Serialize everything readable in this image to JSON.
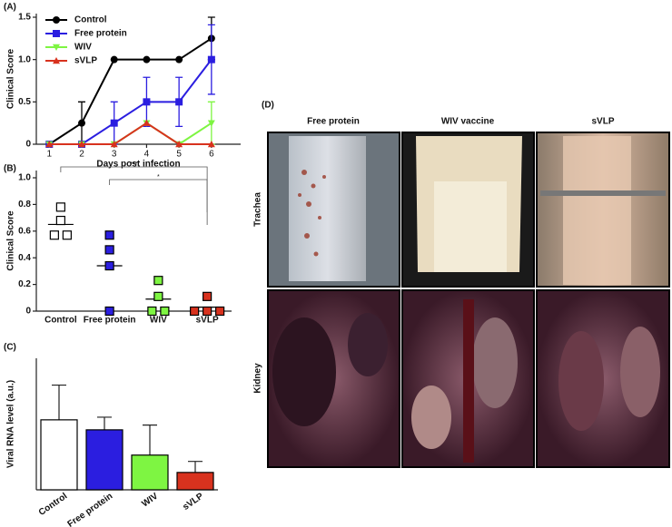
{
  "chart_data": [
    {
      "type": "line",
      "panel_label": "(A)",
      "x_label": "Days post infection",
      "y_label": "Clinical Score",
      "x": [
        1,
        2,
        3,
        4,
        5,
        6
      ],
      "xlim": [
        0.6,
        6.9
      ],
      "xticks": [
        1,
        2,
        3,
        4,
        5,
        6
      ],
      "ylim": [
        0,
        1.5
      ],
      "yticks": [
        0,
        0.5,
        {
          "value": 1,
          "label": "1.0"
        },
        1.5
      ],
      "legend": "upper left",
      "series": [
        {
          "name": "Control",
          "color": "#000000",
          "marker": "circle",
          "values": [
            0,
            0.25,
            1,
            1,
            1,
            1.25
          ],
          "errors": [
            0,
            0.25,
            0,
            0,
            0,
            0.25
          ]
        },
        {
          "name": "Free protein",
          "color": "#2b1ee0",
          "marker": "square",
          "values": [
            0,
            0,
            0.25,
            0.5,
            0.5,
            1
          ],
          "errors": [
            0,
            0,
            0.25,
            0.29,
            0.29,
            0.41
          ]
        },
        {
          "name": "WIV",
          "color": "#7ef542",
          "marker": "triangle-down",
          "values": [
            0,
            0,
            0,
            0.25,
            0,
            0.25
          ],
          "errors": [
            0,
            0,
            0,
            0,
            0,
            0.25
          ]
        },
        {
          "name": "sVLP",
          "color": "#d8321e",
          "marker": "triangle",
          "values": [
            0,
            0,
            0,
            0.25,
            0,
            0
          ],
          "errors": [
            0,
            0,
            0,
            0,
            0,
            0
          ]
        }
      ]
    },
    {
      "type": "dot",
      "panel_label": "(B)",
      "y_label": "Clinical Score",
      "categories": [
        "Control",
        "Free protein",
        "WIV",
        "sVLP"
      ],
      "ylim": [
        0,
        1
      ],
      "yticks": [
        0,
        0.2,
        0.4,
        0.6,
        0.8,
        {
          "value": 1,
          "label": "1.0"
        }
      ],
      "annotations": [
        "***",
        "*"
      ],
      "series": [
        {
          "name": "Control",
          "color": "#ffffff",
          "values": [
            0.78,
            0.68,
            0.57,
            0.57
          ],
          "mean": 0.65
        },
        {
          "name": "Free protein",
          "color": "#2b1ee0",
          "values": [
            0.57,
            0.46,
            0.34,
            0
          ],
          "mean": 0.34
        },
        {
          "name": "WIV",
          "color": "#7ef542",
          "values": [
            0.23,
            0.11,
            0,
            0
          ],
          "mean": 0.09
        },
        {
          "name": "sVLP",
          "color": "#d8321e",
          "values": [
            0.11,
            0,
            0,
            0
          ],
          "mean": 0.03
        }
      ]
    },
    {
      "type": "bar",
      "panel_label": "(C)",
      "y_label": "Viral RNA level (a.u.)",
      "categories": [
        "Control",
        "Free protein",
        "WIV",
        "sVLP"
      ],
      "values": [
        1.33,
        1.14,
        0.66,
        0.33
      ],
      "errors": [
        0.66,
        0.24,
        0.57,
        0.21
      ],
      "colors": [
        "#ffffff",
        "#2b1ee0",
        "#7ef542",
        "#d8321e"
      ],
      "ylim": [
        0,
        2.5
      ]
    }
  ],
  "photo_panel": {
    "label": "(D)",
    "columns": [
      "Free protein",
      "WIV vaccine",
      "sVLP"
    ],
    "rows": [
      "Trachea",
      "Kidney"
    ]
  }
}
